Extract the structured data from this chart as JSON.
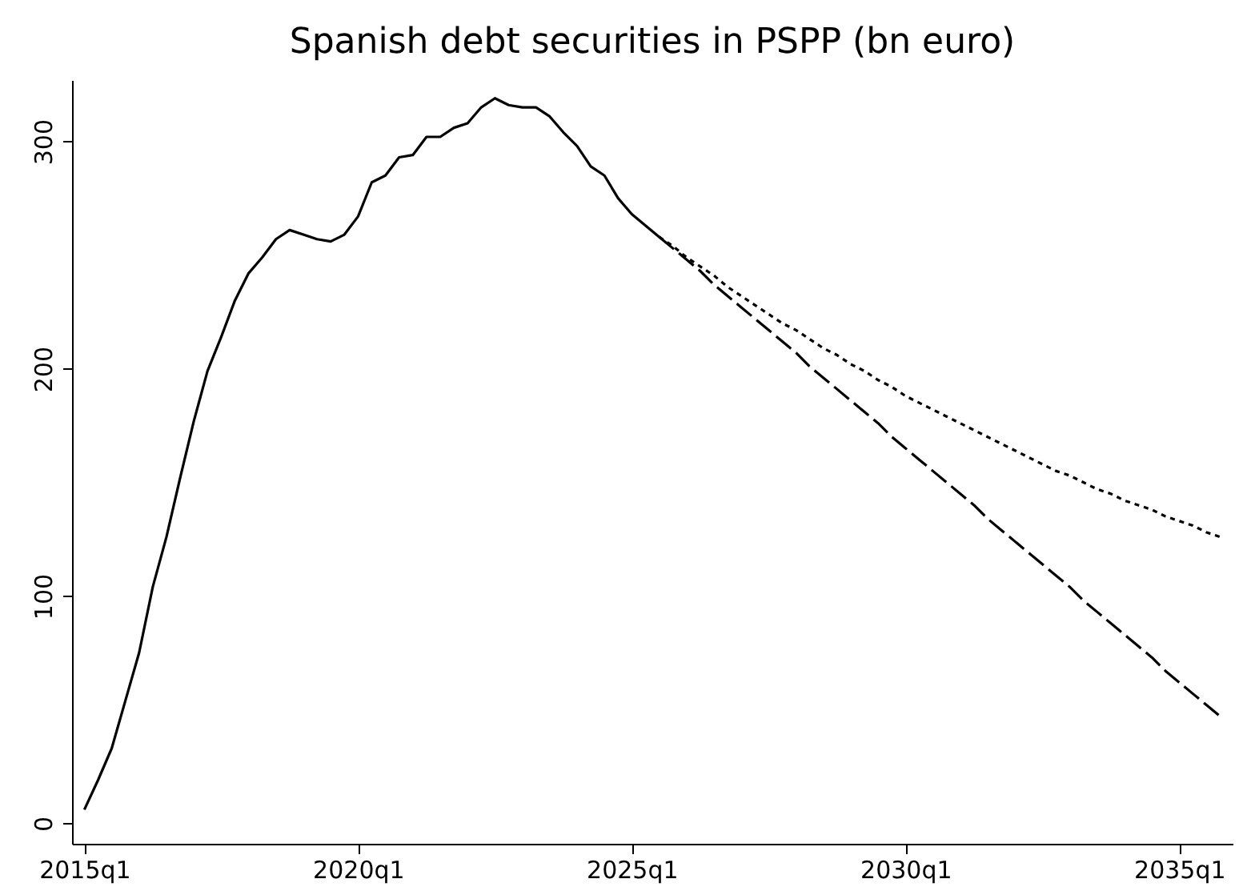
{
  "chart_data": {
    "type": "line",
    "title": "Spanish debt securities in PSPP (bn euro)",
    "categories": [
      "2015q1",
      null,
      null,
      null,
      null,
      null,
      null,
      null,
      null,
      null,
      null,
      null,
      null,
      null,
      null,
      null,
      null,
      null,
      null,
      null,
      "2020q1",
      null,
      null,
      null,
      null,
      null,
      null,
      null,
      null,
      null,
      null,
      null,
      null,
      null,
      null,
      null,
      null,
      null,
      null,
      null,
      "2025q1",
      null,
      null,
      null,
      null,
      null,
      null,
      null,
      null,
      null,
      null,
      null,
      null,
      null,
      null,
      null,
      null,
      null,
      null,
      null,
      "2030q1",
      null,
      null,
      null,
      null,
      null,
      null,
      null,
      null,
      null,
      null,
      null,
      null,
      null,
      null,
      null,
      null,
      null,
      null,
      null,
      "2035q1",
      null,
      null,
      null
    ],
    "ylim": [
      -9,
      327
    ],
    "yticks": [
      0,
      100,
      200,
      300
    ],
    "series": [
      {
        "color": "#000000",
        "line_style": "solid",
        "values": [
          6,
          19,
          33,
          54,
          75,
          104,
          126,
          152,
          177,
          199,
          214,
          230,
          242,
          249,
          257,
          261,
          259,
          257,
          256,
          259,
          267,
          282,
          285,
          293,
          294,
          302,
          302,
          306,
          308,
          315,
          319,
          316,
          315,
          315,
          311,
          304,
          298,
          289,
          285,
          275,
          268,
          263,
          258,
          null,
          null,
          null,
          null,
          null,
          null,
          null,
          null,
          null,
          null,
          null,
          null,
          null,
          null,
          null,
          null,
          null,
          null,
          null,
          null,
          null,
          null,
          null,
          null,
          null,
          null,
          null,
          null,
          null,
          null,
          null,
          null,
          null,
          null,
          null,
          null,
          null,
          null,
          null,
          null,
          null
        ]
      },
      {
        "color": "#000000",
        "line_style": "dashed",
        "values": [
          null,
          null,
          null,
          null,
          null,
          null,
          null,
          null,
          null,
          null,
          null,
          null,
          null,
          null,
          null,
          null,
          null,
          null,
          null,
          null,
          null,
          null,
          null,
          null,
          null,
          null,
          null,
          null,
          null,
          null,
          null,
          null,
          null,
          null,
          null,
          null,
          null,
          null,
          null,
          null,
          null,
          null,
          258,
          253,
          248,
          243,
          237,
          232,
          227,
          222,
          217,
          212,
          207,
          201,
          196,
          191,
          186,
          181,
          176,
          170,
          165,
          160,
          155,
          150,
          145,
          140,
          134,
          129,
          124,
          119,
          114,
          109,
          104,
          98,
          93,
          88,
          83,
          78,
          73,
          67,
          62,
          57,
          52,
          47
        ]
      },
      {
        "color": "#000000",
        "line_style": "dotted",
        "values": [
          null,
          null,
          null,
          null,
          null,
          null,
          null,
          null,
          null,
          null,
          null,
          null,
          null,
          null,
          null,
          null,
          null,
          null,
          null,
          null,
          null,
          null,
          null,
          null,
          null,
          null,
          null,
          null,
          null,
          null,
          null,
          null,
          null,
          null,
          null,
          null,
          null,
          null,
          null,
          null,
          null,
          null,
          258,
          254,
          249,
          245,
          241,
          236,
          232,
          228,
          224,
          220,
          217,
          213,
          209,
          206,
          202,
          199,
          195,
          192,
          188,
          185,
          182,
          179,
          176,
          173,
          170,
          167,
          164,
          161,
          158,
          155,
          153,
          150,
          147,
          145,
          142,
          140,
          138,
          135,
          133,
          131,
          128,
          126
        ]
      }
    ]
  }
}
